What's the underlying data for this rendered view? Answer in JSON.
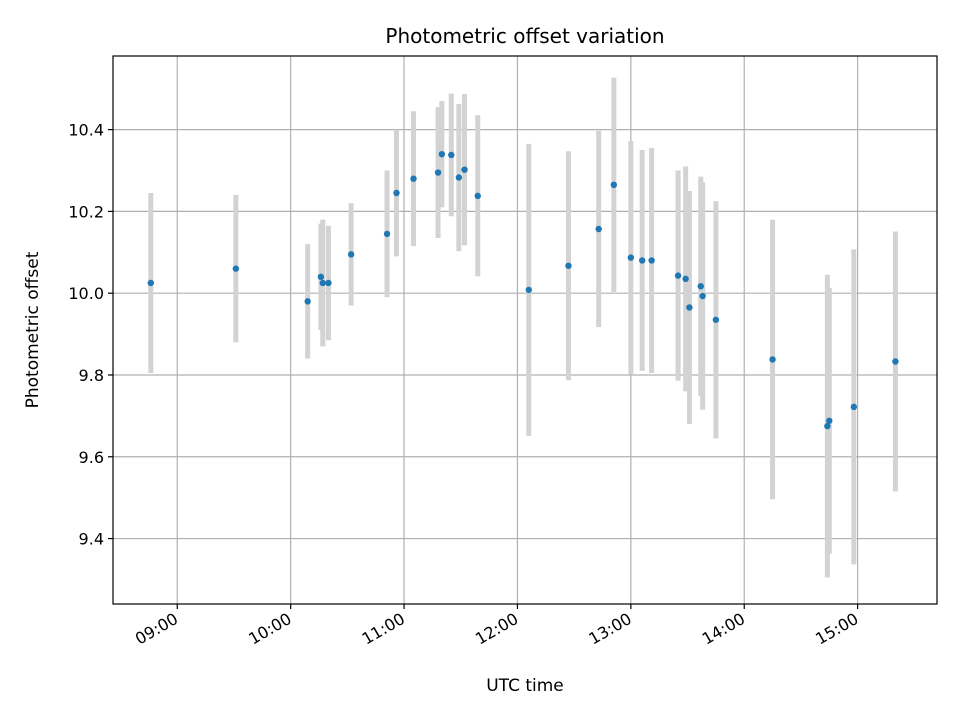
{
  "chart_data": {
    "type": "scatter",
    "title": "Photometric offset variation",
    "xlabel": "UTC time",
    "ylabel": "Photometric offset",
    "x_unit": "UTC time of day (HH:MM)",
    "xlim": [
      "08:26",
      "15:42"
    ],
    "ylim": [
      9.24,
      10.58
    ],
    "x_ticks": [
      "09:00",
      "10:00",
      "11:00",
      "12:00",
      "13:00",
      "14:00",
      "15:00"
    ],
    "y_ticks": [
      9.4,
      9.6,
      9.8,
      10.0,
      10.2,
      10.4
    ],
    "y_tick_labels": [
      "9.4",
      "9.6",
      "9.8",
      "10.0",
      "10.2",
      "10.4"
    ],
    "grid": true,
    "marker_color": "#1f77b4",
    "errorbar_color": "#d3d3d3",
    "points": [
      {
        "t": "08:46",
        "y": 10.025,
        "err": 0.22
      },
      {
        "t": "09:31",
        "y": 10.06,
        "err": 0.18
      },
      {
        "t": "10:09",
        "y": 9.98,
        "err": 0.14
      },
      {
        "t": "10:16",
        "y": 10.04,
        "err": 0.13
      },
      {
        "t": "10:17",
        "y": 10.025,
        "err": 0.155
      },
      {
        "t": "10:20",
        "y": 10.025,
        "err": 0.14
      },
      {
        "t": "10:32",
        "y": 10.095,
        "err": 0.125
      },
      {
        "t": "10:51",
        "y": 10.145,
        "err": 0.155
      },
      {
        "t": "10:56",
        "y": 10.245,
        "err": 0.155
      },
      {
        "t": "11:05",
        "y": 10.28,
        "err": 0.165
      },
      {
        "t": "11:18",
        "y": 10.295,
        "err": 0.16
      },
      {
        "t": "11:20",
        "y": 10.34,
        "err": 0.13
      },
      {
        "t": "11:25",
        "y": 10.338,
        "err": 0.15
      },
      {
        "t": "11:29",
        "y": 10.283,
        "err": 0.18
      },
      {
        "t": "11:32",
        "y": 10.302,
        "err": 0.185
      },
      {
        "t": "11:39",
        "y": 10.238,
        "err": 0.197
      },
      {
        "t": "12:06",
        "y": 10.008,
        "err": 0.357
      },
      {
        "t": "12:27",
        "y": 10.067,
        "err": 0.28
      },
      {
        "t": "12:43",
        "y": 10.157,
        "err": 0.24
      },
      {
        "t": "12:51",
        "y": 10.265,
        "err": 0.262
      },
      {
        "t": "13:00",
        "y": 10.087,
        "err": 0.285
      },
      {
        "t": "13:06",
        "y": 10.08,
        "err": 0.27
      },
      {
        "t": "13:11",
        "y": 10.08,
        "err": 0.275
      },
      {
        "t": "13:25",
        "y": 10.043,
        "err": 0.257
      },
      {
        "t": "13:29",
        "y": 10.035,
        "err": 0.275
      },
      {
        "t": "13:31",
        "y": 9.965,
        "err": 0.285
      },
      {
        "t": "13:37",
        "y": 10.017,
        "err": 0.268
      },
      {
        "t": "13:38",
        "y": 9.993,
        "err": 0.278
      },
      {
        "t": "13:45",
        "y": 9.935,
        "err": 0.29
      },
      {
        "t": "14:15",
        "y": 9.838,
        "err": 0.342
      },
      {
        "t": "14:44",
        "y": 9.675,
        "err": 0.37
      },
      {
        "t": "14:45",
        "y": 9.688,
        "err": 0.325
      },
      {
        "t": "14:58",
        "y": 9.722,
        "err": 0.385
      },
      {
        "t": "15:20",
        "y": 9.833,
        "err": 0.318
      }
    ]
  }
}
